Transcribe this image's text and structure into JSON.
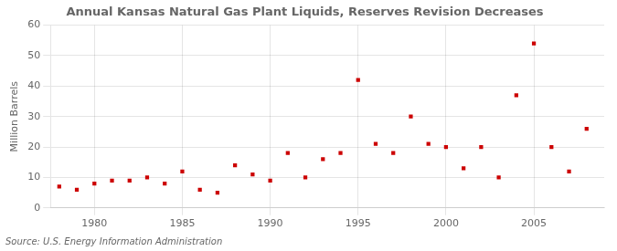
{
  "chart_data": {
    "type": "scatter",
    "title": "Annual Kansas Natural Gas Plant Liquids, Reserves Revision Decreases",
    "ylabel": "Million Barrels",
    "annotation": "Source: U.S. Energy Information Administration",
    "x": [
      1978,
      1979,
      1980,
      1981,
      1982,
      1983,
      1984,
      1985,
      1986,
      1987,
      1988,
      1989,
      1990,
      1991,
      1992,
      1993,
      1994,
      1995,
      1996,
      1997,
      1998,
      1999,
      2000,
      2001,
      2002,
      2003,
      2004,
      2005,
      2006,
      2007,
      2008
    ],
    "values": [
      7,
      6,
      8,
      9,
      9,
      10,
      8,
      12,
      6,
      5,
      14,
      11,
      9,
      18,
      10,
      16,
      18,
      42,
      21,
      18,
      30,
      21,
      20,
      13,
      20,
      10,
      37,
      54,
      20,
      12,
      26
    ],
    "color": "#cc0000",
    "marker": "square",
    "xlim": [
      1977.5,
      2009
    ],
    "xticks": [
      1980,
      1985,
      1990,
      1995,
      2000,
      2005
    ],
    "ylim": [
      0,
      60
    ],
    "yticks": [
      0,
      10,
      20,
      30,
      40,
      50,
      60
    ],
    "grid": true
  }
}
